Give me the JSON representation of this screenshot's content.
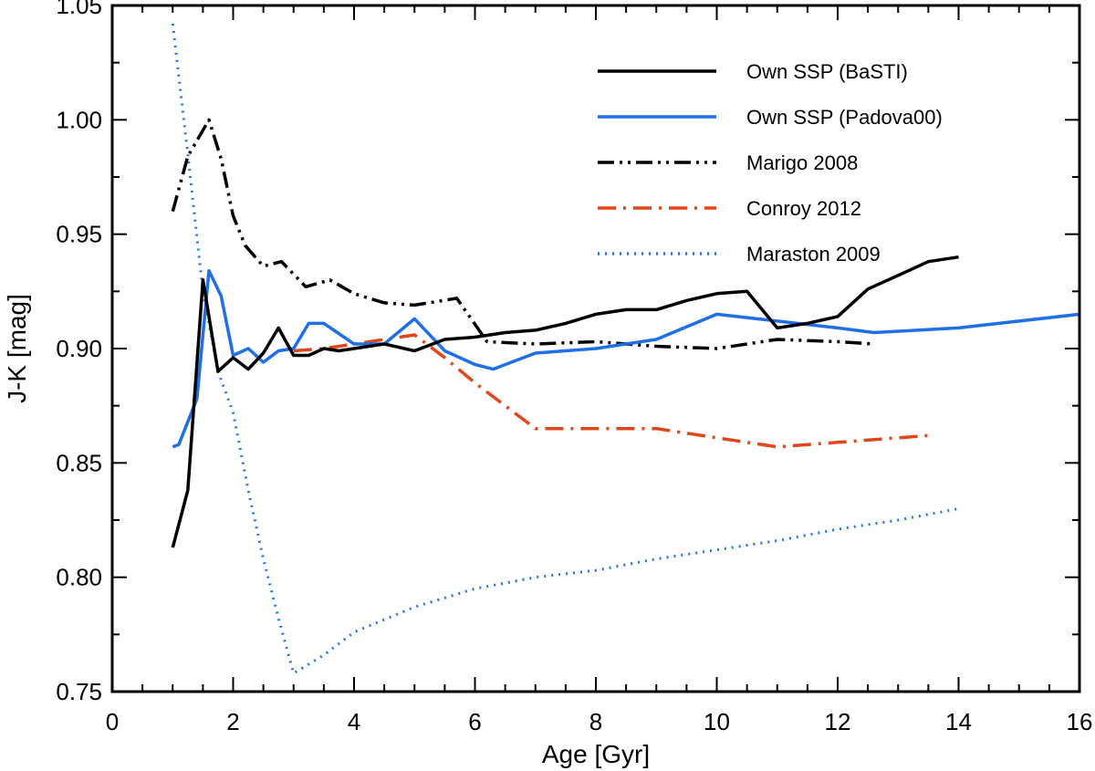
{
  "chart_data": {
    "type": "line",
    "title": "",
    "xlabel": "Age [Gyr]",
    "ylabel": "J-K [mag]",
    "xlim": [
      0,
      16
    ],
    "ylim": [
      0.75,
      1.05
    ],
    "xticks": [
      0,
      2,
      4,
      6,
      8,
      10,
      12,
      14,
      16
    ],
    "yticks": [
      0.75,
      0.8,
      0.85,
      0.9,
      0.95,
      1.0,
      1.05
    ],
    "xtick_labels": [
      "0",
      "2",
      "4",
      "6",
      "8",
      "10",
      "12",
      "14",
      "16"
    ],
    "ytick_labels": [
      "0.75",
      "0.80",
      "0.85",
      "0.90",
      "0.95",
      "1.00",
      "1.05"
    ],
    "grid": false,
    "legend_position": "top-right",
    "series": [
      {
        "name": "Own SSP (BaSTI)",
        "color": "#000000",
        "style": "solid",
        "x": [
          1.0,
          1.25,
          1.5,
          1.75,
          2.0,
          2.25,
          2.5,
          2.75,
          3.0,
          3.25,
          3.5,
          3.75,
          4.0,
          4.5,
          5.0,
          5.5,
          6.0,
          6.5,
          7.0,
          7.5,
          8.0,
          8.5,
          9.0,
          9.5,
          10.0,
          10.5,
          11.0,
          11.5,
          12.0,
          12.5,
          13.0,
          13.5,
          14.0
        ],
        "y": [
          0.813,
          0.838,
          0.93,
          0.89,
          0.896,
          0.891,
          0.898,
          0.909,
          0.897,
          0.897,
          0.9,
          0.899,
          0.9,
          0.902,
          0.899,
          0.904,
          0.905,
          0.907,
          0.908,
          0.911,
          0.915,
          0.917,
          0.917,
          0.921,
          0.924,
          0.925,
          0.909,
          0.911,
          0.914,
          0.926,
          0.932,
          0.938,
          0.94
        ]
      },
      {
        "name": "Own SSP (Padova00)",
        "color": "#1f6fe6",
        "style": "solid",
        "x": [
          1.0,
          1.1,
          1.4,
          1.6,
          1.8,
          2.0,
          2.25,
          2.5,
          2.75,
          3.0,
          3.25,
          3.5,
          4.0,
          4.5,
          5.0,
          5.5,
          6.0,
          6.3,
          7.0,
          8.0,
          9.0,
          10.0,
          11.0,
          12.0,
          12.6,
          14.0,
          16.0
        ],
        "y": [
          0.857,
          0.858,
          0.878,
          0.934,
          0.923,
          0.897,
          0.9,
          0.894,
          0.899,
          0.9,
          0.911,
          0.911,
          0.902,
          0.902,
          0.913,
          0.899,
          0.893,
          0.891,
          0.898,
          0.9,
          0.904,
          0.915,
          0.912,
          0.909,
          0.907,
          0.909,
          0.915
        ]
      },
      {
        "name": "Marigo 2008",
        "color": "#000000",
        "style": "dash-dot-dot",
        "x": [
          1.0,
          1.25,
          1.6,
          1.8,
          2.0,
          2.2,
          2.5,
          2.8,
          3.2,
          3.6,
          4.0,
          4.5,
          5.0,
          5.7,
          6.2,
          7.0,
          8.0,
          9.0,
          10.0,
          11.0,
          12.0,
          12.6
        ],
        "y": [
          0.96,
          0.984,
          1.0,
          0.983,
          0.958,
          0.945,
          0.936,
          0.938,
          0.927,
          0.93,
          0.924,
          0.92,
          0.919,
          0.922,
          0.903,
          0.902,
          0.903,
          0.901,
          0.9,
          0.904,
          0.903,
          0.902
        ]
      },
      {
        "name": "Conroy 2012",
        "color": "#e0461a",
        "style": "dash-dot",
        "x": [
          3.0,
          3.5,
          4.0,
          4.5,
          5.0,
          5.5,
          6.0,
          6.5,
          7.0,
          8.0,
          9.0,
          10.0,
          11.0,
          12.0,
          13.0,
          13.5
        ],
        "y": [
          0.899,
          0.9,
          0.902,
          0.904,
          0.906,
          0.896,
          0.885,
          0.875,
          0.865,
          0.865,
          0.865,
          0.861,
          0.857,
          0.859,
          0.861,
          0.862
        ]
      },
      {
        "name": "Maraston 2009",
        "color": "#1f78e6",
        "style": "dotted",
        "x": [
          1.0,
          1.25,
          1.5,
          1.75,
          2.0,
          2.25,
          2.5,
          2.75,
          3.0,
          3.5,
          4.0,
          5.0,
          6.0,
          7.0,
          8.0,
          9.0,
          10.0,
          11.0,
          12.0,
          13.0,
          14.0
        ],
        "y": [
          1.042,
          0.985,
          0.925,
          0.89,
          0.872,
          0.838,
          0.808,
          0.782,
          0.758,
          0.766,
          0.776,
          0.787,
          0.795,
          0.8,
          0.803,
          0.808,
          0.812,
          0.816,
          0.821,
          0.825,
          0.83
        ]
      }
    ]
  }
}
